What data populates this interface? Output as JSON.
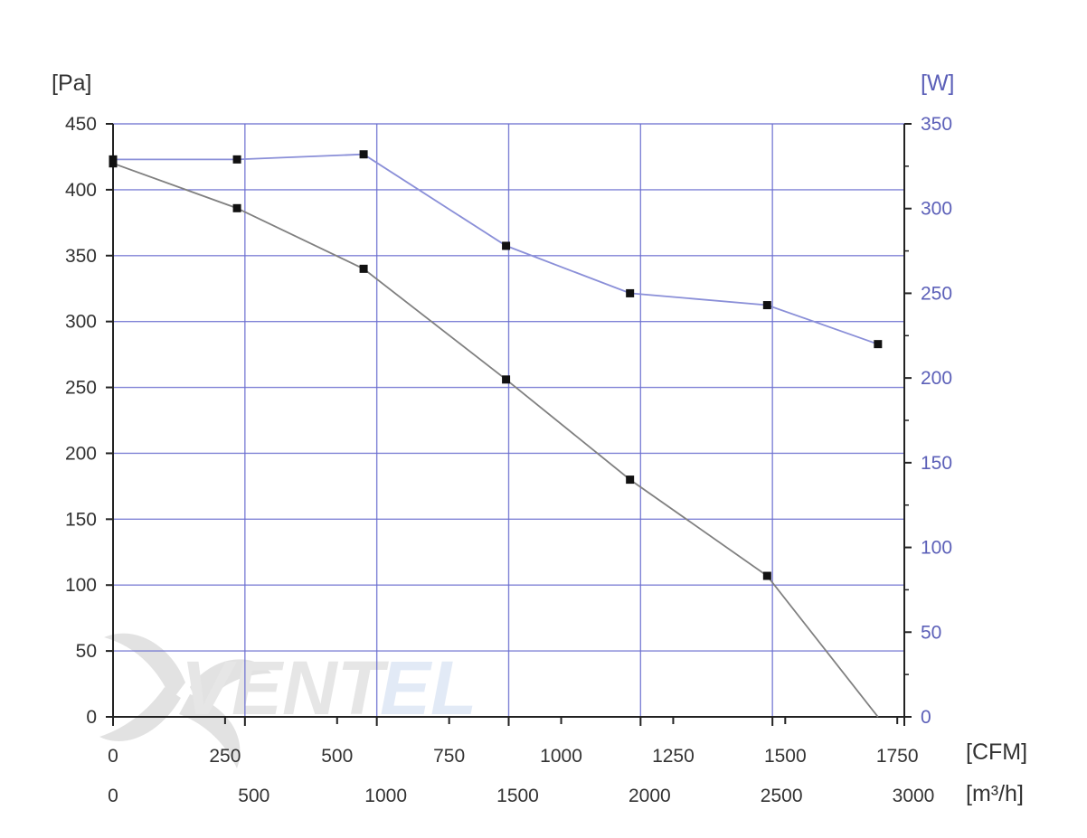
{
  "chart_data": {
    "type": "line",
    "y_left_unit": "[Pa]",
    "y_right_unit": "[W]",
    "x_top_unit": "[CFM]",
    "x_bottom_unit": "[m³/h]",
    "ylim_left": [
      0,
      450
    ],
    "ylim_right": [
      0,
      350
    ],
    "xlim_m3h": [
      0,
      3000
    ],
    "y_left_ticks": [
      0,
      50,
      100,
      150,
      200,
      250,
      300,
      350,
      400,
      450
    ],
    "y_right_ticks": [
      0,
      50,
      100,
      150,
      200,
      250,
      300,
      350
    ],
    "x_cfm_ticks": [
      0,
      250,
      500,
      750,
      1000,
      1250,
      1500,
      1750
    ],
    "x_m3h_ticks": [
      0,
      500,
      1000,
      1500,
      2000,
      2500,
      3000
    ],
    "grid": true,
    "colors": {
      "pressure_line": "#808080",
      "power_line": "#8a8fd8",
      "grid": "#6a6ed0",
      "right_axis_text": "#5b5fb8"
    },
    "series": [
      {
        "axis": "left",
        "marker": "square",
        "x": [
          0,
          470,
          950,
          1490,
          1960,
          2480,
          2900
        ],
        "y": [
          420,
          386,
          340,
          256,
          180,
          107,
          0
        ]
      },
      {
        "axis": "right",
        "marker": "square",
        "x": [
          0,
          470,
          950,
          1490,
          1960,
          2480,
          2900
        ],
        "y": [
          329,
          329,
          332,
          278,
          250,
          243,
          220
        ]
      }
    ]
  },
  "watermark": {
    "text_dark": "VENT",
    "text_light": "EL"
  }
}
